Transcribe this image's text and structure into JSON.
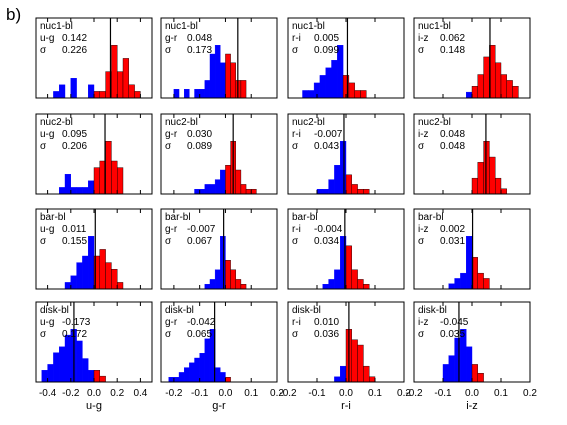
{
  "figure_label": "b)",
  "colors": {
    "negative": "#0000ff",
    "positive": "#ff0000",
    "axes": "#000000"
  },
  "chart_data": [
    {
      "type": "bar",
      "row_label": "nuc1-bl",
      "color_label": "u-g",
      "median": "0.142",
      "sigma_symbol": "σ",
      "sigma": "0.226",
      "xlim": [
        -0.5,
        0.5
      ],
      "xticks": [
        -0.4,
        -0.2,
        0.0,
        0.2,
        0.4
      ],
      "xtick_labels": [
        "-0.4",
        "-0.2",
        "0.0",
        "0.2",
        "0.4"
      ],
      "xlabel": "u-g",
      "bin_start": -0.4,
      "bin_width": 0.05,
      "counts": [
        0,
        1,
        2,
        0,
        3,
        0,
        0,
        2,
        1,
        1,
        4,
        8,
        4,
        6,
        2,
        1
      ],
      "median_value": 0.142
    },
    {
      "type": "bar",
      "row_label": "nuc1-bl",
      "color_label": "g-r",
      "median": "0.048",
      "sigma_symbol": "σ",
      "sigma": "0.173",
      "xlim": [
        -0.25,
        0.2
      ],
      "xticks": [
        -0.2,
        -0.1,
        0.0,
        0.1,
        0.2
      ],
      "xtick_labels": [
        "-0.2",
        "-0.1",
        "0.0",
        "0.1",
        "0.2"
      ],
      "xlabel": "g-r",
      "bin_start": -0.2,
      "bin_width": 0.02,
      "counts": [
        1,
        0,
        1,
        0,
        1,
        1,
        2,
        5,
        6,
        4,
        5,
        4,
        2,
        2
      ],
      "median_value": 0.048
    },
    {
      "type": "bar",
      "row_label": "nuc1-bl",
      "color_label": "r-i",
      "median": "0.005",
      "sigma_symbol": "σ",
      "sigma": "0.099",
      "xlim": [
        -0.2,
        0.2
      ],
      "xticks": [
        -0.2,
        -0.1,
        0.0,
        0.1,
        0.2
      ],
      "xtick_labels": [
        "-0.2",
        "-0.1",
        "0.0",
        "0.1",
        "0.2"
      ],
      "xlabel": "r-i",
      "bin_start": -0.15,
      "bin_width": 0.02,
      "counts": [
        1,
        1,
        2,
        3,
        4,
        5,
        7,
        3,
        2,
        1,
        1
      ],
      "median_value": 0.005
    },
    {
      "type": "bar",
      "row_label": "nuc1-bl",
      "color_label": "i-z",
      "median": "0.062",
      "sigma_symbol": "σ",
      "sigma": "0.148",
      "xlim": [
        -0.2,
        0.2
      ],
      "xticks": [
        -0.2,
        -0.1,
        0.0,
        0.1,
        0.2
      ],
      "xtick_labels": [
        "-0.2",
        "-0.1",
        "0.0",
        "0.1",
        "0.2"
      ],
      "xlabel": "i-z",
      "bin_start": -0.02,
      "bin_width": 0.02,
      "counts": [
        1,
        2,
        4,
        7,
        9,
        6,
        4,
        3,
        2
      ],
      "median_value": 0.062
    },
    {
      "type": "bar",
      "row_label": "nuc2-bl",
      "color_label": "u-g",
      "median": "0.095",
      "sigma_symbol": "σ",
      "sigma": "0.206",
      "xlim": [
        -0.5,
        0.5
      ],
      "xticks": [
        -0.4,
        -0.2,
        0.0,
        0.2,
        0.4
      ],
      "xtick_labels": [
        "-0.4",
        "-0.2",
        "0.0",
        "0.2",
        "0.4"
      ],
      "xlabel": "u-g",
      "bin_start": -0.3,
      "bin_width": 0.05,
      "counts": [
        1,
        3,
        1,
        1,
        1,
        2,
        4,
        5,
        8,
        5,
        4,
        0
      ],
      "median_value": 0.095
    },
    {
      "type": "bar",
      "row_label": "nuc2-bl",
      "color_label": "g-r",
      "median": "0.030",
      "sigma_symbol": "σ",
      "sigma": "0.089",
      "xlim": [
        -0.25,
        0.2
      ],
      "xticks": [
        -0.2,
        -0.1,
        0.0,
        0.1,
        0.2
      ],
      "xtick_labels": [
        "-0.2",
        "-0.1",
        "0.0",
        "0.1",
        "0.2"
      ],
      "xlabel": "g-r",
      "bin_start": -0.12,
      "bin_width": 0.02,
      "counts": [
        1,
        1,
        2,
        2,
        3,
        5,
        6,
        11,
        5,
        2,
        1,
        1
      ],
      "median_value": 0.03
    },
    {
      "type": "bar",
      "row_label": "nuc2-bl",
      "color_label": "r-i",
      "median": "-0.007",
      "sigma_symbol": "σ",
      "sigma": "0.043",
      "xlim": [
        -0.2,
        0.2
      ],
      "xticks": [
        -0.2,
        -0.1,
        0.0,
        0.1,
        0.2
      ],
      "xtick_labels": [
        "-0.2",
        "-0.1",
        "0.0",
        "0.1",
        "0.2"
      ],
      "xlabel": "r-i",
      "bin_start": -0.1,
      "bin_width": 0.02,
      "counts": [
        1,
        1,
        3,
        6,
        11,
        4,
        2,
        1,
        1
      ],
      "median_value": -0.007
    },
    {
      "type": "bar",
      "row_label": "nuc2-bl",
      "color_label": "i-z",
      "median": "0.048",
      "sigma_symbol": "σ",
      "sigma": "0.048",
      "xlim": [
        -0.2,
        0.2
      ],
      "xticks": [
        -0.2,
        -0.1,
        0.0,
        0.1,
        0.2
      ],
      "xtick_labels": [
        "-0.2",
        "-0.1",
        "0.0",
        "0.1",
        "0.2"
      ],
      "xlabel": "i-z",
      "bin_start": 0.0,
      "bin_width": 0.02,
      "counts": [
        3,
        6,
        10,
        7,
        3,
        1
      ],
      "median_value": 0.048
    },
    {
      "type": "bar",
      "row_label": "bar-bl",
      "color_label": "u-g",
      "median": "0.011",
      "sigma_symbol": "σ",
      "sigma": "0.155",
      "xlim": [
        -0.5,
        0.5
      ],
      "xticks": [
        -0.4,
        -0.2,
        0.0,
        0.2,
        0.4
      ],
      "xtick_labels": [
        "-0.4",
        "-0.2",
        "0.0",
        "0.2",
        "0.4"
      ],
      "xlabel": "u-g",
      "bin_start": -0.3,
      "bin_width": 0.05,
      "counts": [
        0,
        1,
        2,
        4,
        5,
        8,
        5,
        6,
        4,
        3,
        1
      ],
      "median_value": 0.011
    },
    {
      "type": "bar",
      "row_label": "bar-bl",
      "color_label": "g-r",
      "median": "-0.007",
      "sigma_symbol": "σ",
      "sigma": "0.067",
      "xlim": [
        -0.25,
        0.2
      ],
      "xticks": [
        -0.2,
        -0.1,
        0.0,
        0.1,
        0.2
      ],
      "xtick_labels": [
        "-0.2",
        "-0.1",
        "0.0",
        "0.1",
        "0.2"
      ],
      "xlabel": "g-r",
      "bin_start": -0.08,
      "bin_width": 0.02,
      "counts": [
        1,
        2,
        4,
        11,
        6,
        4,
        2,
        1
      ],
      "median_value": -0.007
    },
    {
      "type": "bar",
      "row_label": "bar-bl",
      "color_label": "r-i",
      "median": "-0.004",
      "sigma_symbol": "σ",
      "sigma": "0.034",
      "xlim": [
        -0.2,
        0.2
      ],
      "xticks": [
        -0.2,
        -0.1,
        0.0,
        0.1,
        0.2
      ],
      "xtick_labels": [
        "-0.2",
        "-0.1",
        "0.0",
        "0.1",
        "0.2"
      ],
      "xlabel": "r-i",
      "bin_start": -0.08,
      "bin_width": 0.02,
      "counts": [
        1,
        2,
        4,
        11,
        9,
        4,
        2,
        1
      ],
      "median_value": -0.004
    },
    {
      "type": "bar",
      "row_label": "bar-bl",
      "color_label": "i-z",
      "median": "0.002",
      "sigma_symbol": "σ",
      "sigma": "0.031",
      "xlim": [
        -0.2,
        0.2
      ],
      "xticks": [
        -0.2,
        -0.1,
        0.0,
        0.1,
        0.2
      ],
      "xtick_labels": [
        "-0.2",
        "-0.1",
        "0.0",
        "0.1",
        "0.2"
      ],
      "xlabel": "i-z",
      "bin_start": -0.08,
      "bin_width": 0.02,
      "counts": [
        1,
        2,
        3,
        10,
        6,
        3,
        2
      ],
      "median_value": 0.002
    },
    {
      "type": "bar",
      "row_label": "disk-bl",
      "color_label": "u-g",
      "median": "-0.173",
      "sigma_symbol": "σ",
      "sigma": "0.172",
      "xlim": [
        -0.5,
        0.5
      ],
      "xticks": [
        -0.4,
        -0.2,
        0.0,
        0.2,
        0.4
      ],
      "xtick_labels": [
        "-0.4",
        "-0.2",
        "0.0",
        "0.2",
        "0.4"
      ],
      "xlabel": "u-g",
      "bin_start": -0.45,
      "bin_width": 0.05,
      "counts": [
        2,
        3,
        5,
        6,
        8,
        9,
        7,
        4,
        2,
        2,
        1
      ],
      "median_value": -0.173
    },
    {
      "type": "bar",
      "row_label": "disk-bl",
      "color_label": "g-r",
      "median": "-0.042",
      "sigma_symbol": "σ",
      "sigma": "0.065",
      "xlim": [
        -0.25,
        0.2
      ],
      "xticks": [
        -0.2,
        -0.1,
        0.0,
        0.1,
        0.2
      ],
      "xtick_labels": [
        "-0.2",
        "-0.1",
        "0.0",
        "0.1",
        "0.2"
      ],
      "xlabel": "g-r",
      "bin_start": -0.22,
      "bin_width": 0.02,
      "counts": [
        1,
        1,
        2,
        3,
        4,
        5,
        6,
        9,
        11,
        3,
        2,
        1
      ],
      "median_value": -0.042
    },
    {
      "type": "bar",
      "row_label": "disk-bl",
      "color_label": "r-i",
      "median": "0.010",
      "sigma_symbol": "σ",
      "sigma": "0.036",
      "xlim": [
        -0.2,
        0.2
      ],
      "xticks": [
        -0.2,
        -0.1,
        0.0,
        0.1,
        0.2
      ],
      "xtick_labels": [
        "-0.2",
        "-0.1",
        "0.0",
        "0.1",
        "0.2"
      ],
      "xlabel": "r-i",
      "bin_start": -0.04,
      "bin_width": 0.02,
      "counts": [
        1,
        3,
        10,
        8,
        7,
        3,
        1
      ],
      "median_value": 0.01
    },
    {
      "type": "bar",
      "row_label": "disk-bl",
      "color_label": "i-z",
      "median": "-0.045",
      "sigma_symbol": "σ",
      "sigma": "0.035",
      "xlim": [
        -0.2,
        0.2
      ],
      "xticks": [
        -0.2,
        -0.1,
        0.0,
        0.1,
        0.2
      ],
      "xtick_labels": [
        "-0.2",
        "-0.1",
        "0.0",
        "0.1",
        "0.2"
      ],
      "xlabel": "i-z",
      "bin_start": -0.1,
      "bin_width": 0.02,
      "counts": [
        2,
        3,
        5,
        6,
        4,
        2,
        1
      ],
      "median_value": -0.045
    }
  ]
}
